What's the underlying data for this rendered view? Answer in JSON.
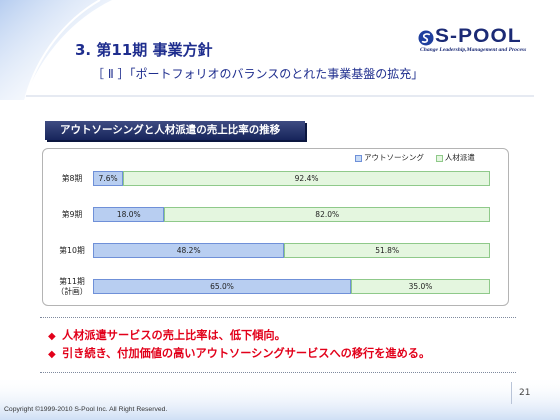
{
  "slide": {
    "heading": "3. 第11期 事業方針",
    "subheading": "［ Ⅱ ］「ポートフォリオのバランスのとれた事業基盤の拡充」",
    "page_number": "21",
    "copyright": "Copyright ©1999-2010 S-Pool Inc. All Right Reserved."
  },
  "logo": {
    "wordmark": "S-POOL",
    "tagline": "Change Leadership,Management and Process",
    "icon": "s-pool-swirl-icon"
  },
  "bullets": [
    {
      "marker": "◆",
      "text": "人材派遣サービスの売上比率は、低下傾向。"
    },
    {
      "marker": "◆",
      "text": "引き続き、付加価値の高いアウトソーシングサービスへの移行を進める。"
    }
  ],
  "colors": {
    "heading": "#1f2e8e",
    "title_bar": "#1a2a6a",
    "bullet_text": "#e2001a"
  },
  "chart_data": {
    "type": "bar",
    "orientation": "horizontal",
    "stacking": "percent",
    "title": "アウトソーシングと人材派遣の売上比率の推移",
    "categories": [
      "第8期",
      "第9期",
      "第10期",
      "第11期\n（計画）"
    ],
    "series": [
      {
        "name": "アウトソーシング",
        "values": [
          7.6,
          18.0,
          48.2,
          65.0
        ],
        "labels": [
          "7.6%",
          "18.0%",
          "48.2%",
          "65.0%"
        ],
        "color": "#c7dbf6",
        "border": "#6f90d8"
      },
      {
        "name": "人材派遣",
        "values": [
          92.4,
          82.0,
          51.8,
          35.0
        ],
        "labels": [
          "92.4%",
          "82.0%",
          "51.8%",
          "35.0%"
        ],
        "color": "#e4f6df",
        "border": "#8fc98a"
      }
    ],
    "xlim": [
      0,
      100
    ],
    "legend": "top-right",
    "grid": false
  }
}
